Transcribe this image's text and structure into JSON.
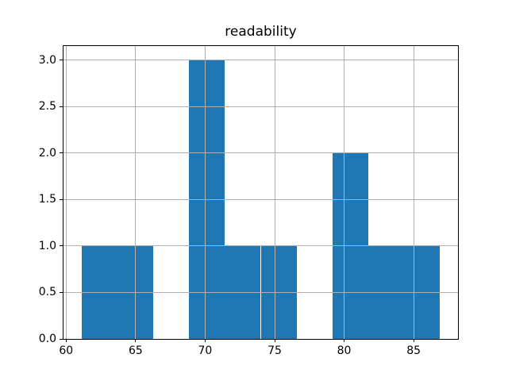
{
  "figure": {
    "background": "#ffffff"
  },
  "chart_data": {
    "type": "bar",
    "subtype": "histogram",
    "title": "readability",
    "xlabel": "",
    "ylabel": "",
    "bins": {
      "edges": [
        61.1,
        63.68,
        66.26,
        68.84,
        71.42,
        74.0,
        76.58,
        79.16,
        81.74,
        84.32,
        86.9
      ],
      "counts": [
        1,
        1,
        0,
        3,
        1,
        1,
        0,
        2,
        1,
        1
      ]
    },
    "xlim": [
      59.81,
      88.19
    ],
    "ylim": [
      0,
      3.15
    ],
    "x_ticks": [
      60,
      65,
      70,
      75,
      80,
      85
    ],
    "x_tick_labels": [
      "60",
      "65",
      "70",
      "75",
      "80",
      "85"
    ],
    "y_ticks": [
      0.0,
      0.5,
      1.0,
      1.5,
      2.0,
      2.5,
      3.0
    ],
    "y_tick_labels": [
      "0.0",
      "0.5",
      "1.0",
      "1.5",
      "2.0",
      "2.5",
      "3.0"
    ],
    "grid": true,
    "grid_on_top_of_bars": true,
    "legend": "none",
    "colors": {
      "bar": "#1f77b4",
      "grid": "#b0b0b0",
      "spine": "#000000",
      "tick_label": "#000000",
      "title": "#000000",
      "background": "#ffffff"
    }
  }
}
